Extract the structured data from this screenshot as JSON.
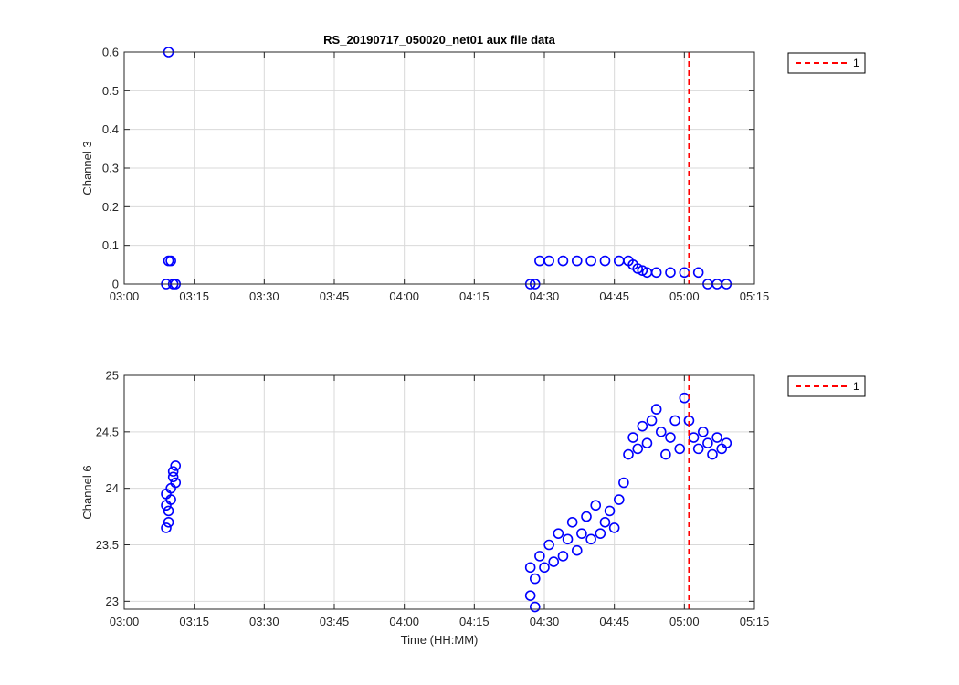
{
  "figure": {
    "title": "RS_20190717_050020_net01 aux file data",
    "background": "#ffffff"
  },
  "colors": {
    "marker": "#0000ff",
    "event_line": "#ff0000",
    "grid": "#d9d9d9",
    "axes": "#262626"
  },
  "chart_data": [
    {
      "type": "scatter",
      "title": "RS_20190717_050020_net01 aux file data",
      "xlabel": "",
      "ylabel": "Channel 3",
      "x_ticks": [
        "03:00",
        "03:15",
        "03:30",
        "03:45",
        "04:00",
        "04:15",
        "04:30",
        "04:45",
        "05:00",
        "05:15"
      ],
      "y_ticks": [
        "0",
        "0.1",
        "0.2",
        "0.3",
        "0.4",
        "0.5",
        "0.6"
      ],
      "xlim": [
        "03:00",
        "05:15"
      ],
      "ylim": [
        0,
        0.6
      ],
      "grid": true,
      "legend": {
        "placement": "outside top-right",
        "entries": [
          "1"
        ]
      },
      "event_line": {
        "x": "05:01",
        "style": "dashed",
        "legend_label": "1"
      },
      "series": [
        {
          "marker": "circle",
          "points": [
            [
              "03:09",
              0
            ],
            [
              "03:09.5",
              0.06
            ],
            [
              "03:09.5",
              0.6
            ],
            [
              "03:10",
              0.06
            ],
            [
              "03:10.5",
              0
            ],
            [
              "03:11",
              0
            ],
            [
              "04:27",
              0
            ],
            [
              "04:28",
              0
            ],
            [
              "04:29",
              0.06
            ],
            [
              "04:31",
              0.06
            ],
            [
              "04:34",
              0.06
            ],
            [
              "04:37",
              0.06
            ],
            [
              "04:40",
              0.06
            ],
            [
              "04:43",
              0.06
            ],
            [
              "04:46",
              0.06
            ],
            [
              "04:48",
              0.06
            ],
            [
              "04:49",
              0.05
            ],
            [
              "04:50",
              0.04
            ],
            [
              "04:51",
              0.035
            ],
            [
              "04:52",
              0.03
            ],
            [
              "04:54",
              0.03
            ],
            [
              "04:57",
              0.03
            ],
            [
              "05:00",
              0.03
            ],
            [
              "05:03",
              0.03
            ],
            [
              "05:05",
              0
            ],
            [
              "05:07",
              0
            ],
            [
              "05:09",
              0
            ]
          ]
        }
      ]
    },
    {
      "type": "scatter",
      "title": "",
      "xlabel": "Time (HH:MM)",
      "ylabel": "Channel 6",
      "x_ticks": [
        "03:00",
        "03:15",
        "03:30",
        "03:45",
        "04:00",
        "04:15",
        "04:30",
        "04:45",
        "05:00",
        "05:15"
      ],
      "y_ticks": [
        "23",
        "23.5",
        "24",
        "24.5",
        "25"
      ],
      "xlim": [
        "03:00",
        "05:15"
      ],
      "ylim": [
        22.93,
        25
      ],
      "grid": true,
      "legend": {
        "placement": "outside top-right",
        "entries": [
          "1"
        ]
      },
      "event_line": {
        "x": "05:01",
        "style": "dashed",
        "legend_label": "1"
      },
      "series": [
        {
          "marker": "circle",
          "points": [
            [
              "03:09",
              23.65
            ],
            [
              "03:09",
              23.85
            ],
            [
              "03:09",
              23.95
            ],
            [
              "03:09.5",
              23.7
            ],
            [
              "03:09.5",
              23.8
            ],
            [
              "03:10",
              23.9
            ],
            [
              "03:10",
              24.0
            ],
            [
              "03:10.5",
              24.1
            ],
            [
              "03:10.5",
              24.15
            ],
            [
              "03:11",
              24.2
            ],
            [
              "03:11",
              24.05
            ],
            [
              "04:27",
              23.3
            ],
            [
              "04:27",
              23.05
            ],
            [
              "04:28",
              23.2
            ],
            [
              "04:28",
              22.95
            ],
            [
              "04:29",
              23.4
            ],
            [
              "04:30",
              23.3
            ],
            [
              "04:31",
              23.5
            ],
            [
              "04:32",
              23.35
            ],
            [
              "04:33",
              23.6
            ],
            [
              "04:34",
              23.4
            ],
            [
              "04:35",
              23.55
            ],
            [
              "04:36",
              23.7
            ],
            [
              "04:37",
              23.45
            ],
            [
              "04:38",
              23.6
            ],
            [
              "04:39",
              23.75
            ],
            [
              "04:40",
              23.55
            ],
            [
              "04:41",
              23.85
            ],
            [
              "04:42",
              23.6
            ],
            [
              "04:43",
              23.7
            ],
            [
              "04:44",
              23.8
            ],
            [
              "04:45",
              23.65
            ],
            [
              "04:46",
              23.9
            ],
            [
              "04:47",
              24.05
            ],
            [
              "04:48",
              24.3
            ],
            [
              "04:49",
              24.45
            ],
            [
              "04:50",
              24.35
            ],
            [
              "04:51",
              24.55
            ],
            [
              "04:52",
              24.4
            ],
            [
              "04:53",
              24.6
            ],
            [
              "04:54",
              24.7
            ],
            [
              "04:55",
              24.5
            ],
            [
              "04:56",
              24.3
            ],
            [
              "04:57",
              24.45
            ],
            [
              "04:58",
              24.6
            ],
            [
              "04:59",
              24.35
            ],
            [
              "05:00",
              24.8
            ],
            [
              "05:01",
              24.6
            ],
            [
              "05:02",
              24.45
            ],
            [
              "05:03",
              24.35
            ],
            [
              "05:04",
              24.5
            ],
            [
              "05:05",
              24.4
            ],
            [
              "05:06",
              24.3
            ],
            [
              "05:07",
              24.45
            ],
            [
              "05:08",
              24.35
            ],
            [
              "05:09",
              24.4
            ]
          ]
        }
      ]
    }
  ]
}
